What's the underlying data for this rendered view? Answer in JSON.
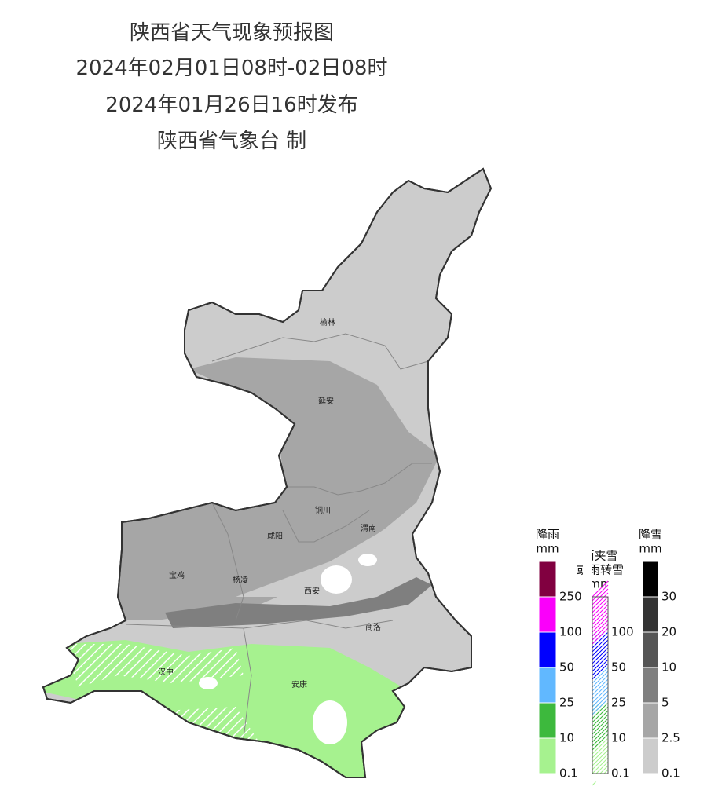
{
  "title": {
    "line1": "陕西省天气现象预报图",
    "line2": "2024年02月01日08时-02日08时",
    "line3": "2024年01月26日16时发布",
    "line4": "陕西省气象台 制"
  },
  "cities": [
    {
      "label": "榆林"
    },
    {
      "label": "延安"
    },
    {
      "label": "铜川"
    },
    {
      "label": "渭南"
    },
    {
      "label": "咸阳"
    },
    {
      "label": "宝鸡"
    },
    {
      "label": "杨凌"
    },
    {
      "label": "西安"
    },
    {
      "label": "商洛"
    },
    {
      "label": "汉中"
    },
    {
      "label": "安康"
    }
  ],
  "legends": [
    {
      "title_lines": [
        "降雨",
        "mm"
      ],
      "colors": [
        "#a6f28f",
        "#3db93d",
        "#61b8ff",
        "#0000fe",
        "#fa00fa",
        "#810040"
      ],
      "ticks": [
        0.1,
        10,
        25,
        50,
        100,
        250
      ],
      "hatched": false
    },
    {
      "title_lines": [
        "雨夹雪",
        "或雨转雪",
        "mm"
      ],
      "colors": [
        "#a6f28f",
        "#3db93d",
        "#61b8ff",
        "#0000fe",
        "#fa00fa"
      ],
      "ticks": [
        0.1,
        10,
        25,
        50,
        100
      ],
      "hatched": true
    },
    {
      "title_lines": [
        "降雪",
        "mm"
      ],
      "colors": [
        "#cccccc",
        "#a6a6a6",
        "#7f7f7f",
        "#555555",
        "#333333",
        "#000000"
      ],
      "ticks": [
        0.1,
        2.5,
        5,
        10,
        20,
        30
      ],
      "hatched": false
    }
  ]
}
